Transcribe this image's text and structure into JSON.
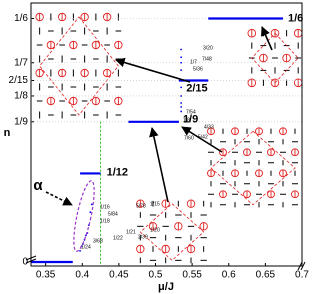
{
  "chart_data": {
    "type": "step",
    "xlabel": "μ/J",
    "ylabel": "n",
    "xlim": [
      0.33,
      0.7
    ],
    "xticks": [
      0.35,
      0.4,
      0.45,
      0.5,
      0.55,
      0.6,
      0.65,
      0.7
    ],
    "ylim": [
      -0.002,
      0.175
    ],
    "ybreak": [
      0.002,
      0.04
    ],
    "yticks": [
      0,
      {
        "value": 0.11111,
        "label": "1/9"
      },
      {
        "value": 0.125,
        "label": "1/8"
      },
      {
        "value": 0.13333,
        "label": "2/15"
      },
      {
        "value": 0.14286,
        "label": "1/7"
      },
      {
        "value": 0.16667,
        "label": "1/6"
      }
    ],
    "grid": true,
    "color": "#0000ee",
    "plateaus": [
      {
        "label": "1/6",
        "value": 0.16667,
        "x": [
          0.572,
          0.674
        ]
      },
      {
        "label": "2/15",
        "value": 0.13333,
        "x": [
          0.532,
          0.572
        ]
      },
      {
        "label": "1/9",
        "value": 0.11111,
        "x": [
          0.463,
          0.532
        ]
      },
      {
        "label": "1/12",
        "value": 0.08333,
        "x": [
          0.397,
          0.425
        ]
      },
      {
        "value": 0,
        "x": [
          0.33,
          0.387
        ]
      }
    ],
    "points": {
      "x": [
        0.535,
        0.535,
        0.535,
        0.535,
        0.535,
        0.535,
        0.535,
        0.535,
        0.535,
        0.397,
        0.399,
        0.401,
        0.403,
        0.405,
        0.407,
        0.409,
        0.411,
        0.413
      ],
      "y": [
        0.15,
        0.14286,
        0.14583,
        0.13889,
        0.12963,
        0.125,
        0.12121,
        0.11667,
        0.11905,
        0.04167,
        0.04412,
        0.04545,
        0.04762,
        0.05,
        0.05128,
        0.05556,
        0.0625,
        0.06667
      ]
    },
    "guide_x": 0.425,
    "guide_color": "#22bb22",
    "fraction_labels": [
      "3/20",
      "1/7",
      "7/48",
      "5/36",
      "7/54",
      "1/8",
      "4/33",
      "7/60",
      "5/42",
      "1/15",
      "5/78",
      "1/16",
      "5/84",
      "1/18",
      "1/24",
      "3/68",
      "1/22",
      "1/21",
      "2/39",
      "1/20"
    ],
    "annotation": "α"
  }
}
